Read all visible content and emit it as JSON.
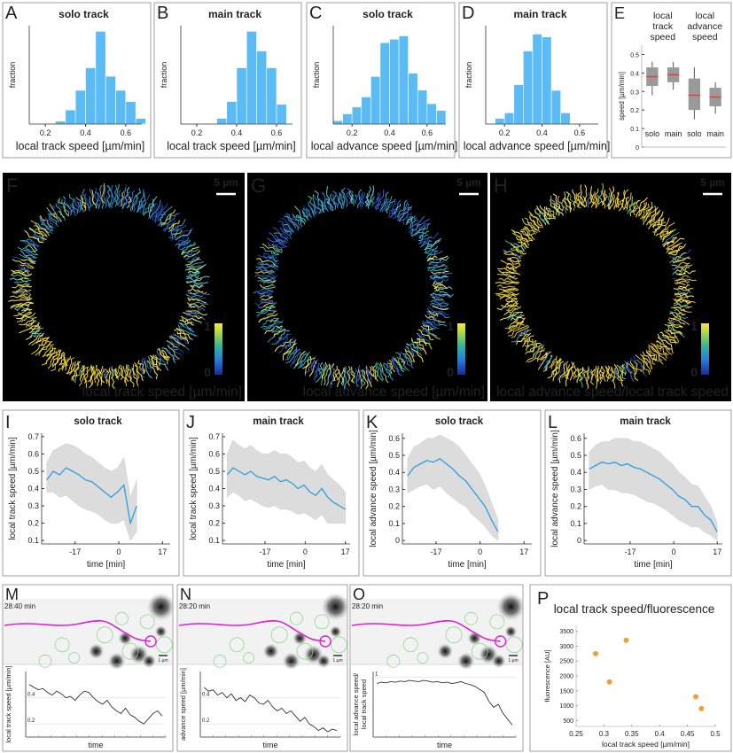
{
  "chart_data": [
    {
      "type": "histogram",
      "panel": "A",
      "title": "solo track",
      "xlabel": "local track speed [µm/min]",
      "ylabel": "fraction",
      "bins": [
        0.25,
        0.3,
        0.35,
        0.4,
        0.45,
        0.5,
        0.55,
        0.6,
        0.65,
        0.7
      ],
      "values": [
        0.01,
        0.05,
        0.12,
        0.2,
        0.33,
        0.17,
        0.12,
        0.08,
        0.02
      ],
      "color": "#5bbcf5",
      "xlim": [
        0.12,
        0.68
      ],
      "xticks": [
        0.2,
        0.4,
        0.6
      ],
      "ylim": [
        0,
        0.35
      ]
    },
    {
      "type": "histogram",
      "panel": "B",
      "title": "main track",
      "xlabel": "local track speed [µm/min]",
      "ylabel": "fraction",
      "bins": [
        0.3,
        0.35,
        0.4,
        0.45,
        0.5,
        0.55,
        0.6,
        0.65
      ],
      "values": [
        0.02,
        0.08,
        0.2,
        0.33,
        0.26,
        0.2,
        0.07
      ],
      "color": "#5bbcf5",
      "xlim": [
        0.12,
        0.68
      ],
      "xticks": [
        0.2,
        0.4,
        0.6
      ],
      "ylim": [
        0,
        0.35
      ]
    },
    {
      "type": "histogram",
      "panel": "C",
      "title": "solo track",
      "xlabel": "local advance speed [µm/min]",
      "ylabel": "fraction",
      "bins": [
        0.1,
        0.15,
        0.2,
        0.25,
        0.3,
        0.35,
        0.4,
        0.45,
        0.5,
        0.55,
        0.6,
        0.65,
        0.7
      ],
      "values": [
        0.01,
        0.03,
        0.05,
        0.08,
        0.14,
        0.24,
        0.25,
        0.26,
        0.15,
        0.1,
        0.06,
        0.04
      ],
      "color": "#5bbcf5",
      "xlim": [
        0.1,
        0.7
      ],
      "xticks": [
        0.2,
        0.4,
        0.6
      ],
      "ylim": [
        0,
        0.29
      ]
    },
    {
      "type": "histogram",
      "panel": "D",
      "title": "main track",
      "xlabel": "local advance speed [µm/min]",
      "ylabel": "fraction",
      "bins": [
        0.15,
        0.2,
        0.25,
        0.3,
        0.35,
        0.4,
        0.45,
        0.5,
        0.55
      ],
      "values": [
        0.02,
        0.04,
        0.14,
        0.26,
        0.32,
        0.31,
        0.12,
        0.04
      ],
      "color": "#5bbcf5",
      "xlim": [
        0.1,
        0.7
      ],
      "xticks": [
        0.2,
        0.4,
        0.6
      ],
      "ylim": [
        0,
        0.35
      ]
    },
    {
      "type": "box",
      "panel": "E",
      "ylabel": "speed [µm/min]",
      "group_labels": [
        [
          "local",
          "track",
          "speed"
        ],
        [
          "local",
          "advance",
          "speed"
        ]
      ],
      "categories": [
        "solo",
        "main",
        "solo",
        "main"
      ],
      "median": [
        0.38,
        0.39,
        0.28,
        0.27
      ],
      "q1": [
        0.33,
        0.35,
        0.2,
        0.22
      ],
      "q3": [
        0.43,
        0.43,
        0.37,
        0.32
      ],
      "whislo": [
        0.28,
        0.31,
        0.15,
        0.18
      ],
      "whishi": [
        0.46,
        0.46,
        0.43,
        0.35
      ],
      "color": "#9a9a9a",
      "median_color": "#e0403a",
      "ylim": [
        0,
        0.55
      ],
      "yticks": [
        0,
        0.1,
        0.2,
        0.3,
        0.4,
        0.5
      ]
    },
    {
      "type": "line",
      "panel": "I",
      "title": "solo track",
      "xlabel": "time [min]",
      "ylabel": "local track speed [µm/min]",
      "x": [
        -28,
        -25.5,
        -23,
        -20.5,
        -18,
        -15.5,
        -13,
        -10.5,
        -8,
        -5.5,
        -3,
        -0.5,
        2,
        4.5,
        7
      ],
      "values": [
        0.45,
        0.5,
        0.48,
        0.52,
        0.5,
        0.48,
        0.45,
        0.44,
        0.41,
        0.38,
        0.35,
        0.38,
        0.42,
        0.2,
        0.3
      ],
      "lower": [
        0.38,
        0.38,
        0.35,
        0.36,
        0.33,
        0.3,
        0.28,
        0.27,
        0.25,
        0.22,
        0.2,
        0.2,
        0.22,
        0.1,
        0.15
      ],
      "upper": [
        0.55,
        0.62,
        0.64,
        0.66,
        0.65,
        0.63,
        0.6,
        0.58,
        0.55,
        0.52,
        0.5,
        0.52,
        0.58,
        0.35,
        0.45
      ],
      "color": "#2a9fe0",
      "band_color": "#dcdcdc",
      "xlim": [
        -30,
        20
      ],
      "xticks": [
        -17,
        0,
        17
      ],
      "ylim": [
        0.08,
        0.72
      ],
      "yticks": [
        0.1,
        0.2,
        0.3,
        0.4,
        0.5,
        0.6,
        0.7
      ]
    },
    {
      "type": "line",
      "panel": "J",
      "title": "main track",
      "xlabel": "time [min]",
      "ylabel": "local track speed [µm/min]",
      "x": [
        -33,
        -30.5,
        -28,
        -25.5,
        -23,
        -20.5,
        -18,
        -15.5,
        -13,
        -10.5,
        -8,
        -5.5,
        -3,
        -0.5,
        2,
        4.5,
        7,
        9.5,
        12,
        14.5,
        17
      ],
      "values": [
        0.48,
        0.52,
        0.5,
        0.48,
        0.5,
        0.47,
        0.46,
        0.45,
        0.47,
        0.44,
        0.45,
        0.43,
        0.4,
        0.42,
        0.38,
        0.36,
        0.4,
        0.35,
        0.32,
        0.3,
        0.28
      ],
      "lower": [
        0.35,
        0.38,
        0.36,
        0.33,
        0.34,
        0.32,
        0.3,
        0.29,
        0.3,
        0.28,
        0.28,
        0.27,
        0.25,
        0.26,
        0.24,
        0.22,
        0.25,
        0.2,
        0.2,
        0.2,
        0.2
      ],
      "upper": [
        0.6,
        0.68,
        0.65,
        0.63,
        0.65,
        0.62,
        0.6,
        0.6,
        0.62,
        0.6,
        0.6,
        0.58,
        0.55,
        0.56,
        0.52,
        0.5,
        0.54,
        0.48,
        0.45,
        0.42,
        0.38
      ],
      "color": "#2a9fe0",
      "band_color": "#dcdcdc",
      "xlim": [
        -35,
        19
      ],
      "xticks": [
        -17,
        0,
        17
      ],
      "ylim": [
        0.08,
        0.72
      ],
      "yticks": [
        0.1,
        0.2,
        0.3,
        0.4,
        0.5,
        0.6,
        0.7
      ]
    },
    {
      "type": "line",
      "panel": "K",
      "title": "solo track",
      "xlabel": "time [min]",
      "ylabel": "local advance speed [µm/min]",
      "x": [
        -28,
        -25.5,
        -23,
        -20.5,
        -18,
        -15.5,
        -13,
        -10.5,
        -8,
        -5.5,
        -3,
        -0.5,
        2,
        4.5,
        7
      ],
      "values": [
        0.38,
        0.43,
        0.45,
        0.47,
        0.46,
        0.48,
        0.45,
        0.42,
        0.38,
        0.35,
        0.3,
        0.25,
        0.2,
        0.12,
        0.05
      ],
      "lower": [
        0.28,
        0.3,
        0.32,
        0.33,
        0.3,
        0.32,
        0.28,
        0.25,
        0.22,
        0.2,
        0.15,
        0.12,
        0.08,
        0.03,
        0
      ],
      "upper": [
        0.48,
        0.55,
        0.57,
        0.6,
        0.6,
        0.62,
        0.6,
        0.58,
        0.55,
        0.5,
        0.45,
        0.4,
        0.32,
        0.22,
        0.12
      ],
      "color": "#2a9fe0",
      "band_color": "#dcdcdc",
      "xlim": [
        -30,
        20
      ],
      "xticks": [
        -17,
        0,
        17
      ],
      "ylim": [
        -0.02,
        0.63
      ],
      "yticks": [
        0,
        0.1,
        0.2,
        0.3,
        0.4,
        0.5,
        0.6
      ]
    },
    {
      "type": "line",
      "panel": "L",
      "title": "main track",
      "xlabel": "time [min]",
      "ylabel": "local advance speed [µm/min]",
      "x": [
        -33,
        -30.5,
        -28,
        -25.5,
        -23,
        -20.5,
        -18,
        -15.5,
        -13,
        -10.5,
        -8,
        -5.5,
        -3,
        -0.5,
        2,
        4.5,
        7,
        9.5,
        12,
        14.5,
        17
      ],
      "values": [
        0.42,
        0.44,
        0.46,
        0.45,
        0.46,
        0.44,
        0.45,
        0.43,
        0.42,
        0.4,
        0.38,
        0.36,
        0.33,
        0.3,
        0.26,
        0.24,
        0.2,
        0.2,
        0.15,
        0.12,
        0.05
      ],
      "lower": [
        0.3,
        0.32,
        0.33,
        0.3,
        0.3,
        0.28,
        0.28,
        0.27,
        0.25,
        0.23,
        0.22,
        0.2,
        0.18,
        0.15,
        0.12,
        0.1,
        0.08,
        0.08,
        0.05,
        0.03,
        0
      ],
      "upper": [
        0.52,
        0.56,
        0.58,
        0.58,
        0.6,
        0.6,
        0.6,
        0.58,
        0.58,
        0.56,
        0.54,
        0.52,
        0.48,
        0.45,
        0.4,
        0.37,
        0.33,
        0.32,
        0.26,
        0.2,
        0.1
      ],
      "color": "#2a9fe0",
      "band_color": "#dcdcdc",
      "xlim": [
        -35,
        19
      ],
      "xticks": [
        -17,
        0,
        17
      ],
      "ylim": [
        -0.02,
        0.63
      ],
      "yticks": [
        0,
        0.1,
        0.2,
        0.3,
        0.4,
        0.5,
        0.6
      ]
    },
    {
      "type": "trace",
      "xlabel": "time",
      "ylabel": [
        "local track speed [µm/min]"
      ],
      "values": [
        0.5,
        0.48,
        0.46,
        0.47,
        0.44,
        0.42,
        0.45,
        0.43,
        0.4,
        0.41,
        0.38,
        0.42,
        0.45,
        0.44,
        0.4,
        0.37,
        0.35,
        0.38,
        0.33,
        0.3,
        0.28,
        0.32,
        0.27,
        0.25,
        0.22,
        0.2,
        0.24,
        0.28,
        0.3,
        0.26
      ],
      "color": "#333333",
      "ylim": [
        0.1,
        0.6
      ],
      "yticks": [
        0.2,
        0.4
      ]
    },
    {
      "type": "trace",
      "xlabel": "time",
      "ylabel": [
        "advance speed [µm/min]"
      ],
      "values": [
        0.48,
        0.45,
        0.46,
        0.42,
        0.44,
        0.4,
        0.43,
        0.38,
        0.4,
        0.37,
        0.42,
        0.4,
        0.36,
        0.35,
        0.38,
        0.33,
        0.3,
        0.32,
        0.28,
        0.3,
        0.26,
        0.22,
        0.25,
        0.2,
        0.18,
        0.15,
        0.17,
        0.14,
        0.16,
        0.15
      ],
      "color": "#333333",
      "ylim": [
        0.1,
        0.6
      ],
      "yticks": [
        0.2,
        0.4
      ]
    },
    {
      "type": "trace",
      "xlabel": "time",
      "ylabel": [
        "local advance speed/",
        "local track speed"
      ],
      "values": [
        0.9,
        0.92,
        0.91,
        0.93,
        0.92,
        0.94,
        0.93,
        0.95,
        0.94,
        0.93,
        0.95,
        0.94,
        0.92,
        0.93,
        0.91,
        0.92,
        0.9,
        0.91,
        0.93,
        0.9,
        0.88,
        0.85,
        0.8,
        0.75,
        0.6,
        0.5,
        0.55,
        0.4,
        0.3,
        0.2
      ],
      "color": "#333333",
      "ylim": [
        0,
        1.1
      ],
      "yticks": [
        1
      ]
    },
    {
      "type": "scatter",
      "panel": "P",
      "title": "local track speed/fluorescence",
      "xlabel": "local  track speed [µm/min]",
      "ylabel": "fluorescence [AU]",
      "x": [
        0.285,
        0.31,
        0.34,
        0.465,
        0.475
      ],
      "values": [
        2750,
        1800,
        3200,
        1300,
        900
      ],
      "color": "#f0a030",
      "xlim": [
        0.25,
        0.5
      ],
      "xticks": [
        0.25,
        0.3,
        0.35,
        0.4,
        0.45,
        0.5
      ],
      "ylim": [
        300,
        3700
      ],
      "yticks": [
        500,
        1000,
        1500,
        2000,
        2500,
        3000,
        3500
      ]
    }
  ],
  "images": [
    {
      "panel": "F",
      "caption": "local track speed [µm/min]",
      "scale": "5 µm",
      "colorbar_ticks": [
        1,
        0
      ]
    },
    {
      "panel": "G",
      "caption": "local advance speed [µm/min]",
      "scale": "5 µm",
      "colorbar_ticks": [
        1,
        0
      ]
    },
    {
      "panel": "H",
      "caption": "local advance speed/local track speed",
      "scale": "5 µm",
      "colorbar_ticks": [
        1,
        0
      ]
    }
  ],
  "micrographs": [
    {
      "panel": "M",
      "timestamp": "28:40 min",
      "scale": "1 µm"
    },
    {
      "panel": "N",
      "timestamp": "28:20 min",
      "scale": "1 µm"
    },
    {
      "panel": "O",
      "timestamp": "28:20 min",
      "scale": "1 µm"
    }
  ]
}
